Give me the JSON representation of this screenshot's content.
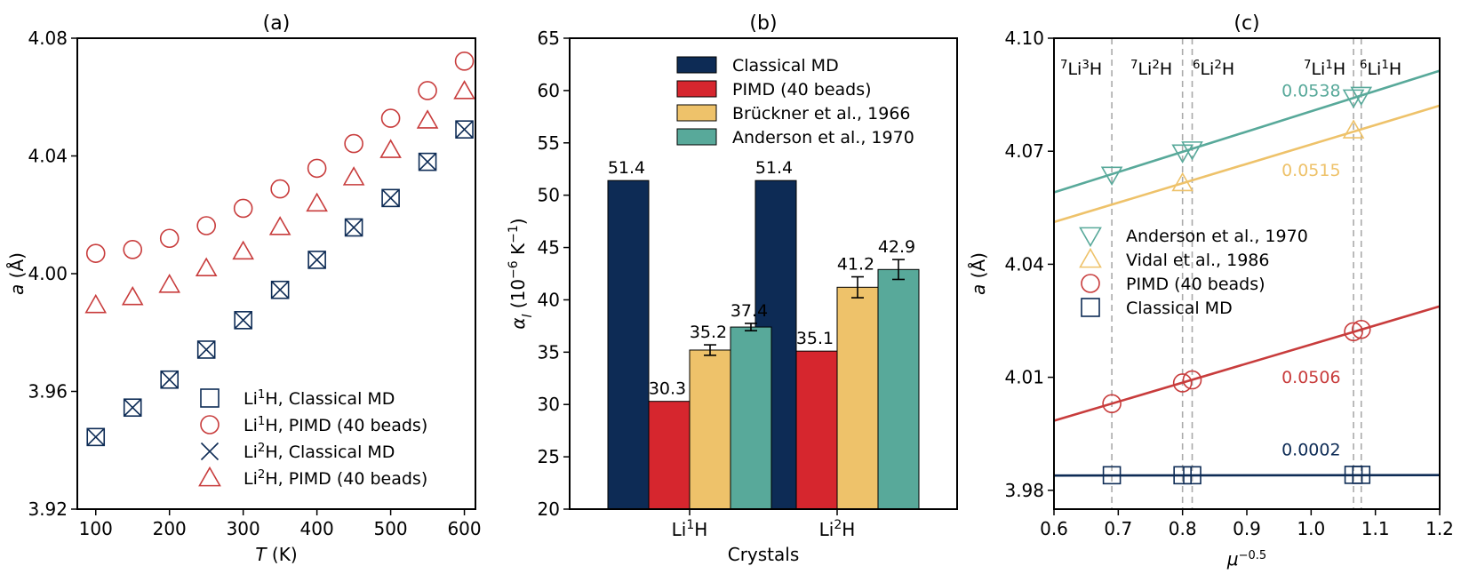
{
  "colors": {
    "navy": "#0d2b55",
    "red": "#d6262e",
    "yellow": "#eec26a",
    "teal": "#58a99a",
    "red_marker": "#c83c3c",
    "gray_dash": "#aaaaaa"
  },
  "chart_data": [
    {
      "id": "a",
      "type": "scatter",
      "title": "(a)",
      "xlabel_italic": "T",
      "xlabel_rest": " (K)",
      "ylabel_italic": "a",
      "ylabel_rest": " (Å)",
      "xlim": [
        75,
        615
      ],
      "ylim": [
        3.92,
        4.08
      ],
      "xticks": [
        100,
        200,
        300,
        400,
        500,
        600
      ],
      "xtick_labels": [
        "100",
        "200",
        "300",
        "400",
        "500",
        "600"
      ],
      "yticks": [
        3.92,
        3.96,
        4.0,
        4.04,
        4.08
      ],
      "ytick_labels": [
        "3.92",
        "3.96",
        "4.00",
        "4.04",
        "4.08"
      ],
      "series": [
        {
          "name": "Li¹H, Classical MD",
          "marker": "square",
          "color": "#0d2b55",
          "x": [
            100,
            150,
            200,
            250,
            300,
            350,
            400,
            450,
            500,
            550,
            600
          ],
          "y": [
            3.9445,
            3.9545,
            3.964,
            3.9742,
            3.9842,
            3.9945,
            4.0047,
            4.0157,
            4.0257,
            4.038,
            4.049
          ]
        },
        {
          "name": "Li¹H, PIMD (40 beads)",
          "marker": "circle",
          "color": "#c83c3c",
          "x": [
            100,
            150,
            200,
            250,
            300,
            350,
            400,
            450,
            500,
            550,
            600
          ],
          "y": [
            4.0069,
            4.0082,
            4.012,
            4.0163,
            4.0222,
            4.0288,
            4.0358,
            4.0442,
            4.0528,
            4.0622,
            4.0722
          ]
        },
        {
          "name": "Li²H, Classical MD",
          "marker": "x",
          "color": "#0d2b55",
          "x": [
            100,
            150,
            200,
            250,
            300,
            350,
            400,
            450,
            500,
            550,
            600
          ],
          "y": [
            3.9445,
            3.9545,
            3.964,
            3.9742,
            3.9842,
            3.9945,
            4.0047,
            4.0157,
            4.0257,
            4.038,
            4.049
          ]
        },
        {
          "name": "Li²H, PIMD (40 beads)",
          "marker": "triangle",
          "color": "#c83c3c",
          "x": [
            100,
            150,
            200,
            250,
            300,
            350,
            400,
            450,
            500,
            550,
            600
          ],
          "y": [
            3.9893,
            3.992,
            3.9962,
            4.0018,
            4.0075,
            4.0158,
            4.0238,
            4.0327,
            4.042,
            4.052,
            4.062
          ]
        }
      ],
      "legend": [
        {
          "label": "Li¹H, Classical MD",
          "marker": "square",
          "color": "#0d2b55"
        },
        {
          "label": "Li¹H, PIMD (40 beads)",
          "marker": "circle",
          "color": "#c83c3c"
        },
        {
          "label": "Li²H, Classical MD",
          "marker": "x",
          "color": "#0d2b55"
        },
        {
          "label": "Li²H, PIMD (40 beads)",
          "marker": "triangle",
          "color": "#c83c3c"
        }
      ],
      "legend_position": "lower-right"
    },
    {
      "id": "b",
      "type": "bar",
      "title": "(b)",
      "xlabel": "Crystals",
      "ylabel": "αl (10⁻⁶ K⁻¹)",
      "ylim": [
        20,
        65
      ],
      "yticks": [
        20,
        25,
        30,
        35,
        40,
        45,
        50,
        55,
        60,
        65
      ],
      "ytick_labels": [
        "20",
        "25",
        "30",
        "35",
        "40",
        "45",
        "50",
        "55",
        "60",
        "65"
      ],
      "categories": [
        "Li¹H",
        "Li²H"
      ],
      "series": [
        {
          "name": "Classical MD",
          "color": "#0d2b55",
          "values": [
            51.4,
            51.4
          ],
          "labels": [
            "51.4",
            "51.4"
          ],
          "errors": [
            0,
            0
          ]
        },
        {
          "name": "PIMD (40 beads)",
          "color": "#d6262e",
          "values": [
            30.3,
            35.1
          ],
          "labels": [
            "30.3",
            "35.1"
          ],
          "errors": [
            0,
            0
          ]
        },
        {
          "name": "Brückner et al., 1966",
          "color": "#eec26a",
          "values": [
            35.2,
            41.2
          ],
          "labels": [
            "35.2",
            "41.2"
          ],
          "errors": [
            0.5,
            1.0
          ]
        },
        {
          "name": "Anderson et al., 1970",
          "color": "#58a99a",
          "values": [
            37.4,
            42.9
          ],
          "labels": [
            "37.4",
            "42.9"
          ],
          "errors": [
            0.35,
            0.95
          ]
        }
      ],
      "legend_position": "top-right"
    },
    {
      "id": "c",
      "type": "scatter",
      "title": "(c)",
      "xlabel": "μ⁻⁰·⁵",
      "ylabel_italic": "a",
      "ylabel_rest": " (Å)",
      "xlim": [
        0.6,
        1.2
      ],
      "ylim": [
        3.975,
        4.1
      ],
      "xticks": [
        0.6,
        0.7,
        0.8,
        0.9,
        1.0,
        1.1,
        1.2
      ],
      "xtick_labels": [
        "0.6",
        "0.7",
        "0.8",
        "0.9",
        "1.0",
        "1.1",
        "1.2"
      ],
      "yticks": [
        3.98,
        4.01,
        4.04,
        4.07,
        4.1
      ],
      "ytick_labels": [
        "3.98",
        "4.01",
        "4.04",
        "4.07",
        "4.10"
      ],
      "vlines": [
        0.69,
        0.8,
        0.815,
        1.066,
        1.078
      ],
      "isotopes": [
        {
          "x": 0.69,
          "label": "⁷Li³H"
        },
        {
          "x": 0.8,
          "label": "⁷Li²H"
        },
        {
          "x": 0.815,
          "label": "⁶Li²H"
        },
        {
          "x": 1.066,
          "label": "⁷Li¹H"
        },
        {
          "x": 1.078,
          "label": "⁶Li¹H"
        }
      ],
      "series": [
        {
          "name": "Anderson et al., 1970",
          "marker": "triangle-down",
          "color": "#58a99a",
          "x": [
            0.69,
            0.8,
            0.815,
            1.066,
            1.078
          ],
          "y": [
            4.0638,
            4.0697,
            4.0705,
            4.0843,
            4.085
          ],
          "fit": {
            "slope": 0.0538,
            "intercept": 4.0268
          },
          "fit_label": "0.0538"
        },
        {
          "name": "Vidal et al., 1986",
          "marker": "triangle",
          "color": "#eec26a",
          "x": [
            0.8,
            1.066
          ],
          "y": [
            4.0615,
            4.0755
          ],
          "fit": {
            "slope": 0.0515,
            "intercept": 4.0203
          },
          "fit_label": "0.0515"
        },
        {
          "name": "PIMD (40 beads)",
          "marker": "circle",
          "color": "#c83c3c",
          "x": [
            0.69,
            0.8,
            0.815,
            1.066,
            1.078
          ],
          "y": [
            4.003,
            4.0085,
            4.0093,
            4.0221,
            4.0227
          ],
          "fit": {
            "slope": 0.0506,
            "intercept": 3.9681
          },
          "fit_label": "0.0506"
        },
        {
          "name": "Classical MD",
          "marker": "square",
          "color": "#0d2b55",
          "x": [
            0.69,
            0.8,
            0.815,
            1.066,
            1.078
          ],
          "y": [
            3.984,
            3.984,
            3.984,
            3.9841,
            3.9841
          ],
          "fit": {
            "slope": 0.0002,
            "intercept": 3.9838
          },
          "fit_label": "0.0002"
        }
      ],
      "legend_position": "center-left"
    }
  ]
}
